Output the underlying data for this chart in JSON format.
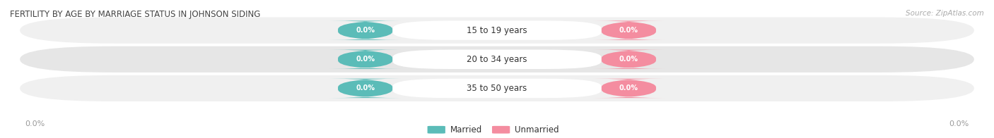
{
  "title": "FERTILITY BY AGE BY MARRIAGE STATUS IN JOHNSON SIDING",
  "source": "Source: ZipAtlas.com",
  "categories": [
    "15 to 19 years",
    "20 to 34 years",
    "35 to 50 years"
  ],
  "married_values": [
    0.0,
    0.0,
    0.0
  ],
  "unmarried_values": [
    0.0,
    0.0,
    0.0
  ],
  "married_color": "#5bbcb8",
  "unmarried_color": "#f48da0",
  "row_bg_color_odd": "#f0f0f0",
  "row_bg_color_even": "#e6e6e6",
  "label_color": "#333333",
  "title_color": "#444444",
  "axis_label_color": "#999999",
  "figsize": [
    14.06,
    1.96
  ],
  "dpi": 100,
  "legend_married": "Married",
  "legend_unmarried": "Unmarried",
  "x_tick_label_left": "0.0%",
  "x_tick_label_right": "0.0%"
}
